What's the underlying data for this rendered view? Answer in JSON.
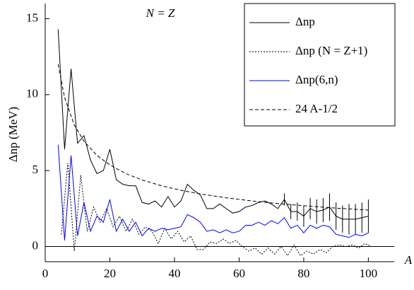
{
  "chart_data": {
    "type": "line",
    "annotation": "N = Z",
    "x_label": "A",
    "y_label": "Δnp (MeV)",
    "xlim": [
      0,
      108
    ],
    "ylim": [
      -1,
      16
    ],
    "xticks": [
      0,
      20,
      40,
      60,
      80,
      100
    ],
    "yticks": [
      0,
      5,
      10,
      15
    ],
    "legend": "upper right",
    "series": [
      {
        "name": "Δnp",
        "color": "#000000",
        "style": "solid",
        "x": [
          4,
          6,
          8,
          10,
          12,
          14,
          16,
          18,
          20,
          22,
          24,
          26,
          28,
          30,
          32,
          34,
          36,
          38,
          40,
          42,
          44,
          46,
          48,
          50,
          52,
          54,
          56,
          58,
          60,
          62,
          64,
          66,
          68,
          70,
          72,
          74,
          76,
          78,
          80,
          82,
          84,
          86,
          88,
          90,
          92,
          94,
          96,
          98,
          100
        ],
        "values": [
          14.3,
          6.4,
          11.7,
          6.8,
          7.3,
          5.7,
          4.8,
          5.0,
          6.4,
          4.4,
          4.1,
          4.0,
          4.0,
          2.9,
          2.8,
          3.0,
          2.6,
          3.3,
          2.6,
          3.0,
          4.1,
          3.7,
          3.4,
          2.5,
          2.5,
          2.8,
          2.5,
          2.2,
          2.3,
          2.6,
          2.7,
          2.9,
          3.0,
          2.8,
          2.5,
          3.1,
          2.3,
          2.3,
          2.0,
          2.5,
          2.3,
          2.4,
          2.6,
          2.0,
          1.8,
          1.8,
          1.8,
          1.9,
          2.0
        ],
        "errors": [
          null,
          null,
          null,
          null,
          null,
          null,
          null,
          null,
          null,
          null,
          null,
          null,
          null,
          null,
          null,
          null,
          null,
          null,
          null,
          null,
          null,
          null,
          null,
          null,
          null,
          null,
          null,
          null,
          null,
          null,
          null,
          null,
          null,
          null,
          null,
          0.4,
          0.5,
          0.6,
          0.7,
          0.7,
          0.8,
          0.8,
          0.9,
          0.9,
          0.9,
          1.0,
          1.0,
          1.0,
          1.1
        ]
      },
      {
        "name": "Δnp (N = Z+1)",
        "color": "#000000",
        "style": "dotted",
        "x": [
          5,
          7,
          9,
          11,
          13,
          15,
          17,
          19,
          21,
          23,
          25,
          27,
          29,
          31,
          33,
          35,
          37,
          39,
          41,
          43,
          45,
          47,
          49,
          51,
          53,
          55,
          57,
          59,
          61,
          63,
          65,
          67,
          69,
          71,
          73,
          75,
          77,
          79,
          81,
          83,
          85,
          87,
          89,
          91,
          93,
          95,
          97,
          99,
          101
        ],
        "values": [
          0.8,
          5.5,
          -0.3,
          4.7,
          1.0,
          2.6,
          1.6,
          2.5,
          1.3,
          2.0,
          1.0,
          1.8,
          0.8,
          1.3,
          1.0,
          0.2,
          1.2,
          0.5,
          1.0,
          0.3,
          0.7,
          -0.2,
          -0.2,
          0.3,
          0.2,
          0.5,
          0.2,
          0.4,
          0.0,
          -0.3,
          -0.1,
          -0.5,
          -0.1,
          -0.5,
          0.0,
          -0.6,
          0.1,
          -0.6,
          -0.3,
          -0.5,
          -0.2,
          -0.4,
          0.0,
          0.1,
          0.0,
          0.1,
          -0.1,
          0.2,
          0.0
        ]
      },
      {
        "name": "Δnp(6,n)",
        "color": "#0000ff",
        "style": "solid",
        "x": [
          4,
          6,
          8,
          10,
          12,
          14,
          16,
          18,
          20,
          22,
          24,
          26,
          28,
          30,
          32,
          34,
          36,
          38,
          40,
          42,
          44,
          46,
          48,
          50,
          52,
          54,
          56,
          58,
          60,
          62,
          64,
          66,
          68,
          70,
          72,
          74,
          76,
          78,
          80,
          82,
          84,
          86,
          88,
          90,
          92,
          94,
          96,
          98,
          100
        ],
        "values": [
          6.7,
          0.4,
          6.0,
          0.7,
          2.9,
          1.0,
          2.0,
          1.6,
          3.1,
          1.0,
          1.8,
          1.0,
          1.6,
          0.7,
          1.2,
          1.0,
          1.2,
          1.1,
          1.2,
          1.3,
          2.1,
          1.9,
          1.6,
          1.0,
          1.1,
          0.9,
          1.1,
          0.9,
          1.0,
          1.4,
          1.4,
          1.6,
          1.4,
          1.7,
          1.5,
          1.9,
          1.2,
          1.4,
          0.9,
          1.4,
          1.2,
          1.4,
          1.3,
          0.8,
          0.7,
          0.6,
          0.8,
          0.7,
          0.9
        ]
      },
      {
        "name": "24 A-1/2",
        "color": "#000000",
        "style": "dashed",
        "x": [
          4,
          6,
          9,
          12,
          16,
          20,
          25,
          30,
          36,
          42,
          49,
          56,
          64,
          72,
          81,
          90,
          100
        ],
        "values": [
          12,
          9.8,
          8,
          6.93,
          6,
          5.37,
          4.8,
          4.38,
          4,
          3.7,
          3.43,
          3.21,
          3,
          2.83,
          2.67,
          2.53,
          2.4
        ]
      }
    ]
  }
}
